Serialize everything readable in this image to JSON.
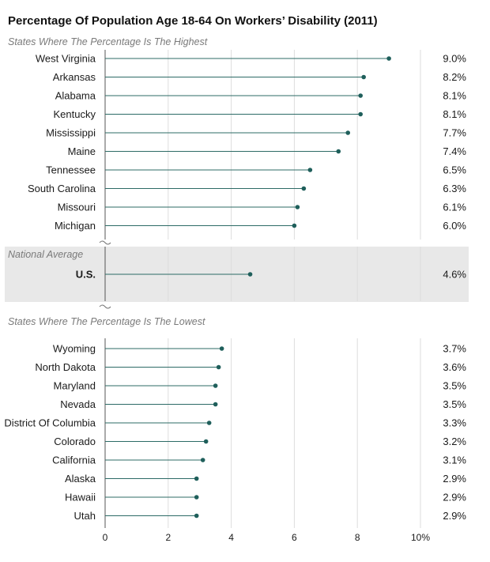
{
  "chart_data": {
    "type": "lollipop",
    "title": "Percentage Of Population Age 18-64 On Workers’ Disability (2011)",
    "xlim": [
      0,
      10
    ],
    "x_ticks": [
      "0",
      "2",
      "4",
      "6",
      "8",
      "10%"
    ],
    "x_tick_values": [
      0,
      2,
      4,
      6,
      8,
      10
    ],
    "grid": true,
    "colors": {
      "marker": "#1f5f5b",
      "stem": "#2d6b66",
      "band": "#e8e8e8",
      "grid": "#dddddd"
    },
    "groups": [
      {
        "label": "States Where The Percentage Is The Highest",
        "rows": [
          {
            "name": "West Virginia",
            "value": 9.0,
            "value_label": "9.0%"
          },
          {
            "name": "Arkansas",
            "value": 8.2,
            "value_label": "8.2%"
          },
          {
            "name": "Alabama",
            "value": 8.1,
            "value_label": "8.1%"
          },
          {
            "name": "Kentucky",
            "value": 8.1,
            "value_label": "8.1%"
          },
          {
            "name": "Mississippi",
            "value": 7.7,
            "value_label": "7.7%"
          },
          {
            "name": "Maine",
            "value": 7.4,
            "value_label": "7.4%"
          },
          {
            "name": "Tennessee",
            "value": 6.5,
            "value_label": "6.5%"
          },
          {
            "name": "South Carolina",
            "value": 6.3,
            "value_label": "6.3%"
          },
          {
            "name": "Missouri",
            "value": 6.1,
            "value_label": "6.1%"
          },
          {
            "name": "Michigan",
            "value": 6.0,
            "value_label": "6.0%"
          }
        ]
      },
      {
        "label": "National Average",
        "highlight": true,
        "rows": [
          {
            "name": "U.S.",
            "value": 4.6,
            "value_label": "4.6%",
            "bold": true
          }
        ]
      },
      {
        "label": "States Where The Percentage Is The Lowest",
        "rows": [
          {
            "name": "Wyoming",
            "value": 3.7,
            "value_label": "3.7%"
          },
          {
            "name": "North Dakota",
            "value": 3.6,
            "value_label": "3.6%"
          },
          {
            "name": "Maryland",
            "value": 3.5,
            "value_label": "3.5%"
          },
          {
            "name": "Nevada",
            "value": 3.5,
            "value_label": "3.5%"
          },
          {
            "name": "District Of Columbia",
            "value": 3.3,
            "value_label": "3.3%"
          },
          {
            "name": "Colorado",
            "value": 3.2,
            "value_label": "3.2%"
          },
          {
            "name": "California",
            "value": 3.1,
            "value_label": "3.1%"
          },
          {
            "name": "Alaska",
            "value": 2.9,
            "value_label": "2.9%"
          },
          {
            "name": "Hawaii",
            "value": 2.9,
            "value_label": "2.9%"
          },
          {
            "name": "Utah",
            "value": 2.9,
            "value_label": "2.9%"
          }
        ]
      }
    ]
  }
}
